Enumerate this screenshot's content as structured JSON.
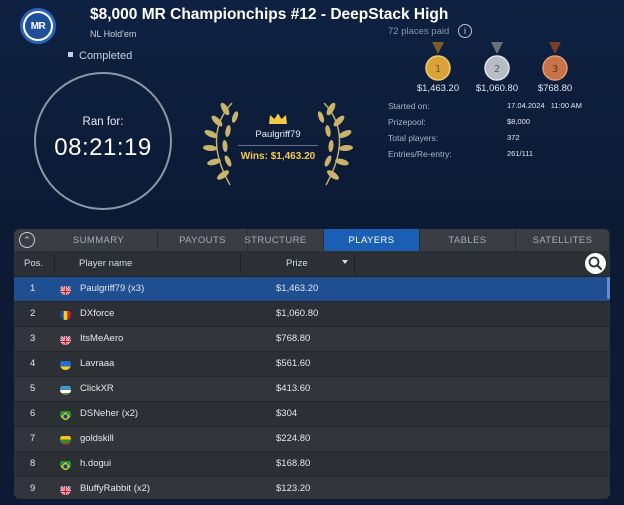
{
  "header": {
    "logo_text": "MR",
    "title": "$8,000 MR Championchips #12 - DeepStack High",
    "game_type": "NL Hold'em",
    "places_paid": "72 places paid",
    "info_icon": "i",
    "status": "Completed"
  },
  "clock": {
    "label": "Ran for:",
    "time": "08:21:19"
  },
  "winner": {
    "name": "Paulgriff79",
    "wins": "Wins: $1,463.20"
  },
  "medals": [
    {
      "place": "1",
      "amount": "$1,463.20",
      "color": "#d9a33a"
    },
    {
      "place": "2",
      "amount": "$1,060.80",
      "color": "#b8bdc5"
    },
    {
      "place": "3",
      "amount": "$768.80",
      "color": "#c8734a"
    }
  ],
  "stats": [
    {
      "label": "Started on:",
      "value": "17.04.2024   11:00 AM"
    },
    {
      "label": "Prizepool:",
      "value": "$8,000"
    },
    {
      "label": "Total players:",
      "value": "372"
    },
    {
      "label": "Entries/Re-entry:",
      "value": "261/111"
    }
  ],
  "tabs": {
    "items": [
      "SUMMARY",
      "PAYOUTS",
      "STRUCTURE",
      "PLAYERS",
      "TABLES",
      "SATELLITES"
    ],
    "active": "PLAYERS",
    "collapse_icon": "chevron-up-icon"
  },
  "table": {
    "columns": {
      "pos": "Pos.",
      "player": "Player name",
      "prize": "Prize"
    },
    "rows": [
      {
        "pos": "1",
        "name": "Paulgriff79 (x3)",
        "prize": "$1,463.20",
        "flag": "gb"
      },
      {
        "pos": "2",
        "name": "DXforce",
        "prize": "$1,060.80",
        "flag": "ro"
      },
      {
        "pos": "3",
        "name": "ItsMeAero",
        "prize": "$768.80",
        "flag": "gb"
      },
      {
        "pos": "4",
        "name": "Lavraaa",
        "prize": "$561.60",
        "flag": "ua"
      },
      {
        "pos": "5",
        "name": "ClickXR",
        "prize": "$413.60",
        "flag": "uz"
      },
      {
        "pos": "6",
        "name": "DSNeher (x2)",
        "prize": "$304",
        "flag": "br"
      },
      {
        "pos": "7",
        "name": "goldskill",
        "prize": "$224.80",
        "flag": "lt"
      },
      {
        "pos": "8",
        "name": "h.dogui",
        "prize": "$168.80",
        "flag": "br"
      },
      {
        "pos": "9",
        "name": "BluffyRabbit (x2)",
        "prize": "$123.20",
        "flag": "gb"
      }
    ]
  },
  "colors": {
    "background": "#0c1a33",
    "accent": "#1a5fb4",
    "winnings": "#f2c94c"
  }
}
